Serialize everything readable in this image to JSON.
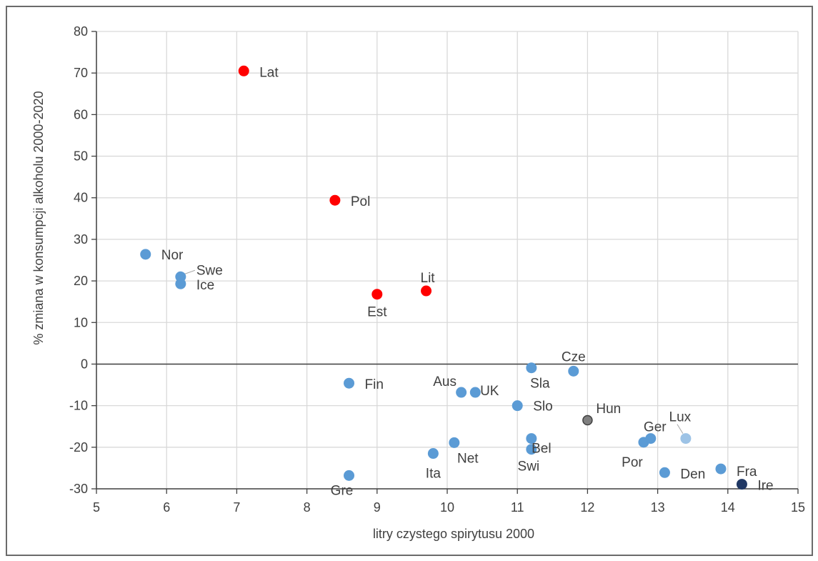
{
  "chart_data": {
    "type": "scatter",
    "title": "",
    "xlabel": "litry czystego spirytusu 2000",
    "ylabel": "% zmiana w konsumpcji alkoholu 2000-2020",
    "xlim": [
      5,
      15
    ],
    "ylim": [
      -30,
      80
    ],
    "xticks": [
      5,
      6,
      7,
      8,
      9,
      10,
      11,
      12,
      13,
      14,
      15
    ],
    "yticks": [
      -30,
      -20,
      -10,
      0,
      10,
      20,
      30,
      40,
      50,
      60,
      70,
      80
    ],
    "grid": true,
    "legend": "none",
    "colors": {
      "default": "#5b9bd5",
      "highlight": "#ff0000",
      "dark": "#203864",
      "light": "#9dc3e6",
      "grid": "#d9d9d9",
      "axis": "#404040"
    },
    "points": [
      {
        "label": "Lat",
        "x": 7.1,
        "y": 70.5,
        "color": "highlight"
      },
      {
        "label": "Pol",
        "x": 8.4,
        "y": 39.4,
        "color": "highlight"
      },
      {
        "label": "Est",
        "x": 9.0,
        "y": 16.8,
        "color": "highlight"
      },
      {
        "label": "Lit",
        "x": 9.7,
        "y": 17.6,
        "color": "highlight"
      },
      {
        "label": "Nor",
        "x": 5.7,
        "y": 26.4,
        "color": "default"
      },
      {
        "label": "Swe",
        "x": 6.2,
        "y": 21.0,
        "color": "default"
      },
      {
        "label": "Ice",
        "x": 6.2,
        "y": 19.3,
        "color": "default"
      },
      {
        "label": "Fin",
        "x": 8.6,
        "y": -4.6,
        "color": "default"
      },
      {
        "label": "Gre",
        "x": 8.6,
        "y": -26.8,
        "color": "default"
      },
      {
        "label": "Ita",
        "x": 9.8,
        "y": -21.5,
        "color": "default"
      },
      {
        "label": "Net",
        "x": 10.1,
        "y": -18.9,
        "color": "default"
      },
      {
        "label": "Aus",
        "x": 10.2,
        "y": -6.8,
        "color": "default"
      },
      {
        "label": "UK",
        "x": 10.4,
        "y": -6.8,
        "color": "default"
      },
      {
        "label": "Slo",
        "x": 11.0,
        "y": -10.0,
        "color": "default"
      },
      {
        "label": "Sla",
        "x": 11.2,
        "y": -0.9,
        "color": "default"
      },
      {
        "label": "Bel",
        "x": 11.2,
        "y": -17.9,
        "color": "default"
      },
      {
        "label": "Swi",
        "x": 11.2,
        "y": -20.5,
        "color": "default"
      },
      {
        "label": "Cze",
        "x": 11.8,
        "y": -1.7,
        "color": "default"
      },
      {
        "label": "Hun",
        "x": 12.0,
        "y": -13.5,
        "color": "default"
      },
      {
        "label": "Por",
        "x": 12.8,
        "y": -18.8,
        "color": "default"
      },
      {
        "label": "Ger",
        "x": 12.9,
        "y": -17.9,
        "color": "default"
      },
      {
        "label": "Lux",
        "x": 13.4,
        "y": -17.9,
        "color": "light"
      },
      {
        "label": "Den",
        "x": 13.1,
        "y": -26.1,
        "color": "default"
      },
      {
        "label": "Fra",
        "x": 13.9,
        "y": -25.2,
        "color": "default"
      },
      {
        "label": "Ire",
        "x": 14.2,
        "y": -28.9,
        "color": "dark"
      }
    ]
  }
}
